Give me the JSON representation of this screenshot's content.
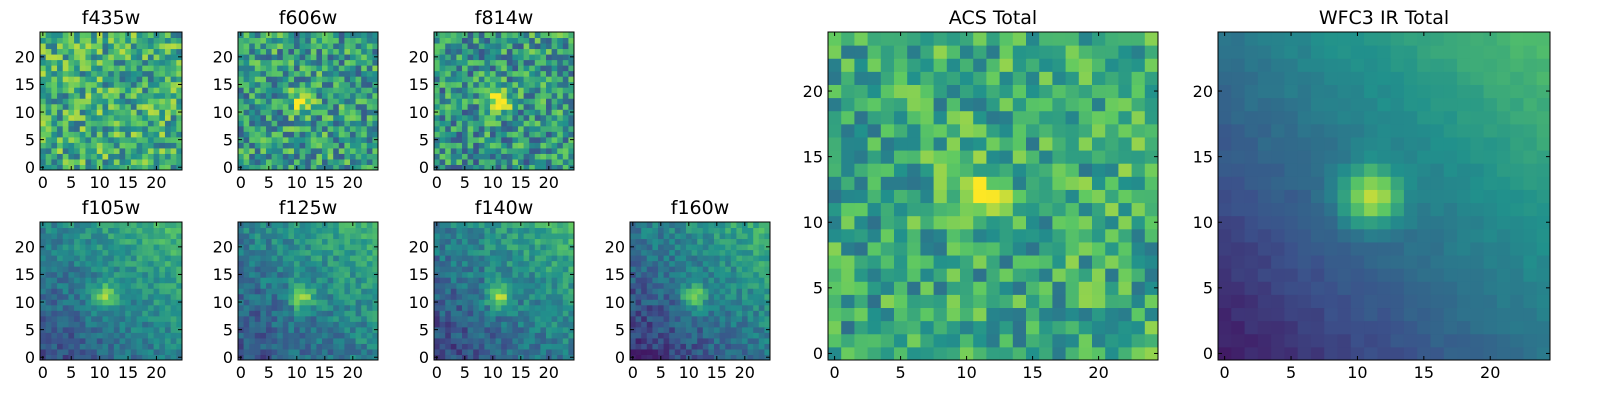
{
  "figure": {
    "colormap": "viridis",
    "colormap_stops": [
      "#440154",
      "#3b528b",
      "#21918c",
      "#5ec962",
      "#fde725"
    ]
  },
  "chart_data": [
    {
      "type": "heatmap",
      "title": "f435w",
      "xlim": [
        0,
        24
      ],
      "ylim": [
        0,
        24
      ],
      "xticks": [
        "0",
        "5",
        "10",
        "15",
        "20"
      ],
      "yticks": [
        "0",
        "5",
        "10",
        "15",
        "20"
      ],
      "grid_size": 25,
      "source_x": 12,
      "source_y": 11,
      "source_strength": 0.0,
      "noise": 0.55,
      "bias": 0.62,
      "gradient": 0.0,
      "seed": 11
    },
    {
      "type": "heatmap",
      "title": "f606w",
      "xlim": [
        0,
        24
      ],
      "ylim": [
        0,
        24
      ],
      "xticks": [
        "0",
        "5",
        "10",
        "15",
        "20"
      ],
      "yticks": [
        "0",
        "5",
        "10",
        "15",
        "20"
      ],
      "grid_size": 25,
      "source_x": 11,
      "source_y": 12,
      "source_strength": 0.45,
      "noise": 0.55,
      "bias": 0.55,
      "gradient": 0.0,
      "seed": 23
    },
    {
      "type": "heatmap",
      "title": "f814w",
      "xlim": [
        0,
        24
      ],
      "ylim": [
        0,
        24
      ],
      "xticks": [
        "0",
        "5",
        "10",
        "15",
        "20"
      ],
      "yticks": [
        "0",
        "5",
        "10",
        "15",
        "20"
      ],
      "grid_size": 25,
      "source_x": 11,
      "source_y": 12,
      "source_strength": 0.55,
      "noise": 0.55,
      "bias": 0.52,
      "gradient": 0.05,
      "seed": 37
    },
    {
      "type": "heatmap",
      "title": "ACS Total",
      "xlim": [
        0,
        24
      ],
      "ylim": [
        0,
        24
      ],
      "xticks": [
        "0",
        "5",
        "10",
        "15",
        "20"
      ],
      "yticks": [
        "0",
        "5",
        "10",
        "15",
        "20"
      ],
      "grid_size": 25,
      "source_x": 11,
      "source_y": 12,
      "source_strength": 0.35,
      "noise": 0.45,
      "bias": 0.6,
      "gradient": 0.05,
      "seed": 51
    },
    {
      "type": "heatmap",
      "title": "f105w",
      "xlim": [
        0,
        24
      ],
      "ylim": [
        0,
        24
      ],
      "xticks": [
        "0",
        "5",
        "10",
        "15",
        "20"
      ],
      "yticks": [
        "0",
        "5",
        "10",
        "15",
        "20"
      ],
      "grid_size": 25,
      "source_x": 11,
      "source_y": 11,
      "source_strength": 0.45,
      "noise": 0.22,
      "bias": 0.38,
      "gradient": 0.45,
      "seed": 61
    },
    {
      "type": "heatmap",
      "title": "f125w",
      "xlim": [
        0,
        24
      ],
      "ylim": [
        0,
        24
      ],
      "xticks": [
        "0",
        "5",
        "10",
        "15",
        "20"
      ],
      "yticks": [
        "0",
        "5",
        "10",
        "15",
        "20"
      ],
      "grid_size": 25,
      "source_x": 11,
      "source_y": 11,
      "source_strength": 0.45,
      "noise": 0.25,
      "bias": 0.38,
      "gradient": 0.4,
      "seed": 73
    },
    {
      "type": "heatmap",
      "title": "f140w",
      "xlim": [
        0,
        24
      ],
      "ylim": [
        0,
        24
      ],
      "xticks": [
        "0",
        "5",
        "10",
        "15",
        "20"
      ],
      "yticks": [
        "0",
        "5",
        "10",
        "15",
        "20"
      ],
      "grid_size": 25,
      "source_x": 11,
      "source_y": 11,
      "source_strength": 0.45,
      "noise": 0.25,
      "bias": 0.36,
      "gradient": 0.45,
      "seed": 89
    },
    {
      "type": "heatmap",
      "title": "f160w",
      "xlim": [
        0,
        24
      ],
      "ylim": [
        0,
        24
      ],
      "xticks": [
        "0",
        "5",
        "10",
        "15",
        "20"
      ],
      "yticks": [
        "0",
        "5",
        "10",
        "15",
        "20"
      ],
      "grid_size": 25,
      "source_x": 11,
      "source_y": 11,
      "source_strength": 0.45,
      "noise": 0.22,
      "bias": 0.32,
      "gradient": 0.5,
      "seed": 97
    },
    {
      "type": "heatmap",
      "title": "WFC3 IR Total",
      "xlim": [
        0,
        24
      ],
      "ylim": [
        0,
        24
      ],
      "xticks": [
        "0",
        "5",
        "10",
        "15",
        "20"
      ],
      "yticks": [
        "0",
        "5",
        "10",
        "15",
        "20"
      ],
      "grid_size": 25,
      "source_x": 11,
      "source_y": 12,
      "source_strength": 0.55,
      "noise": 0.05,
      "bias": 0.3,
      "gradient": 0.6,
      "seed": 101
    }
  ]
}
